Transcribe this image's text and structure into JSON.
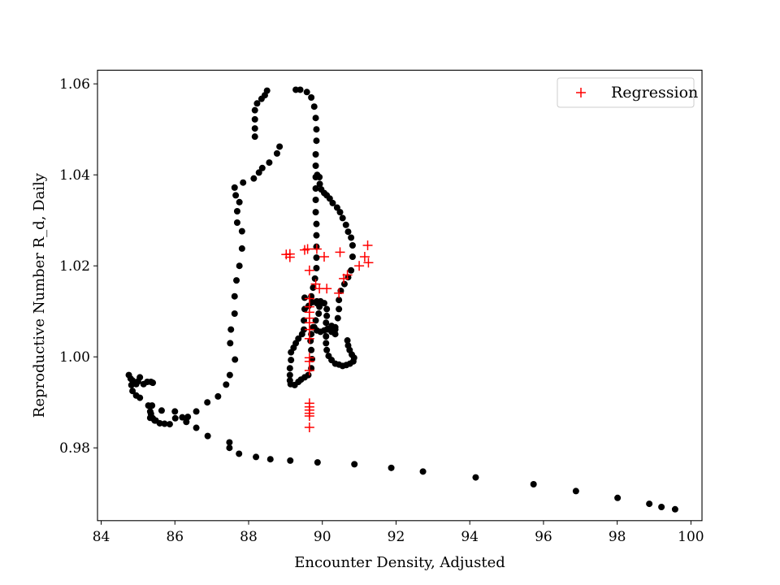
{
  "chart_data": {
    "type": "scatter",
    "title": "",
    "xlabel": "Encounter Density, Adjusted",
    "ylabel": "Reproductive Number R_d, Daily",
    "xlim": [
      83.9,
      100.3
    ],
    "ylim": [
      0.964,
      1.063
    ],
    "xticks": [
      84,
      86,
      88,
      90,
      92,
      94,
      96,
      98,
      100
    ],
    "xtick_labels": [
      "84",
      "86",
      "88",
      "90",
      "92",
      "94",
      "96",
      "98",
      "100"
    ],
    "yticks": [
      0.98,
      1.0,
      1.02,
      1.04,
      1.06
    ],
    "ytick_labels": [
      "0.98",
      "1.00",
      "1.02",
      "1.04",
      "1.06"
    ],
    "grid": false,
    "legend_position": "top-right",
    "series": [
      {
        "name": "",
        "marker": "dot",
        "color": "#000000",
        "points": [
          [
            99.57,
            0.9665
          ],
          [
            99.2,
            0.967
          ],
          [
            98.87,
            0.9677
          ],
          [
            98.01,
            0.969
          ],
          [
            96.88,
            0.9705
          ],
          [
            95.73,
            0.972
          ],
          [
            94.16,
            0.9735
          ],
          [
            92.73,
            0.9748
          ],
          [
            91.87,
            0.9756
          ],
          [
            90.87,
            0.9764
          ],
          [
            89.87,
            0.9768
          ],
          [
            89.13,
            0.9772
          ],
          [
            88.59,
            0.9775
          ],
          [
            88.2,
            0.978
          ],
          [
            87.74,
            0.9787
          ],
          [
            87.48,
            0.98
          ],
          [
            87.48,
            0.9812
          ],
          [
            86.89,
            0.9826
          ],
          [
            86.58,
            0.9844
          ],
          [
            86.31,
            0.9857
          ],
          [
            86.01,
            0.9865
          ],
          [
            85.86,
            0.9852
          ],
          [
            85.72,
            0.9853
          ],
          [
            85.59,
            0.9854
          ],
          [
            85.45,
            0.986
          ],
          [
            85.33,
            0.9866
          ],
          [
            85.33,
            0.988
          ],
          [
            85.64,
            0.9882
          ],
          [
            86.0,
            0.988
          ],
          [
            86.2,
            0.9867
          ],
          [
            86.35,
            0.9868
          ],
          [
            86.58,
            0.988
          ],
          [
            86.88,
            0.99
          ],
          [
            87.17,
            0.9913
          ],
          [
            87.39,
            0.9939
          ],
          [
            87.49,
            0.996
          ],
          [
            87.63,
            0.9994
          ],
          [
            87.5,
            1.003
          ],
          [
            87.52,
            1.006
          ],
          [
            87.62,
            1.0095
          ],
          [
            87.62,
            1.0133
          ],
          [
            87.67,
            1.0168
          ],
          [
            87.75,
            1.02
          ],
          [
            87.82,
            1.0238
          ],
          [
            87.82,
            1.0276
          ],
          [
            87.69,
            1.0295
          ],
          [
            87.69,
            1.032
          ],
          [
            87.75,
            1.034
          ],
          [
            87.65,
            1.0355
          ],
          [
            87.62,
            1.0372
          ],
          [
            87.85,
            1.0383
          ],
          [
            88.14,
            1.0392
          ],
          [
            88.28,
            1.0405
          ],
          [
            88.37,
            1.0415
          ],
          [
            88.56,
            1.0427
          ],
          [
            88.77,
            1.0447
          ],
          [
            88.84,
            1.0462
          ],
          [
            88.17,
            1.0484
          ],
          [
            88.17,
            1.0502
          ],
          [
            88.17,
            1.0522
          ],
          [
            88.17,
            1.0542
          ],
          [
            88.23,
            1.0557
          ],
          [
            88.35,
            1.0567
          ],
          [
            88.44,
            1.0575
          ],
          [
            88.5,
            1.0585
          ],
          [
            89.28,
            1.0587
          ],
          [
            89.4,
            1.0587
          ],
          [
            89.58,
            1.0582
          ],
          [
            89.7,
            1.057
          ],
          [
            89.78,
            1.055
          ],
          [
            89.82,
            1.0525
          ],
          [
            89.84,
            1.05
          ],
          [
            89.84,
            1.0475
          ],
          [
            89.82,
            1.0445
          ],
          [
            89.82,
            1.042
          ],
          [
            89.82,
            1.0395
          ],
          [
            89.82,
            1.037
          ],
          [
            89.82,
            1.0345
          ],
          [
            89.82,
            1.0318
          ],
          [
            89.84,
            1.0292
          ],
          [
            89.84,
            1.0267
          ],
          [
            89.84,
            1.0242
          ],
          [
            89.84,
            1.0218
          ],
          [
            89.84,
            1.0195
          ],
          [
            89.8,
            1.0172
          ],
          [
            89.75,
            1.0152
          ],
          [
            89.7,
            1.0133
          ],
          [
            89.86,
            1.04
          ],
          [
            89.92,
            1.0395
          ],
          [
            89.93,
            1.038
          ],
          [
            89.97,
            1.0368
          ],
          [
            90.05,
            1.036
          ],
          [
            90.12,
            1.0355
          ],
          [
            90.2,
            1.0348
          ],
          [
            90.28,
            1.0338
          ],
          [
            90.4,
            1.0328
          ],
          [
            90.48,
            1.0318
          ],
          [
            90.55,
            1.0305
          ],
          [
            90.64,
            1.029
          ],
          [
            90.7,
            1.0275
          ],
          [
            90.78,
            1.0262
          ],
          [
            90.82,
            1.0245
          ],
          [
            90.82,
            1.022
          ],
          [
            90.78,
            1.019
          ],
          [
            90.7,
            1.0175
          ],
          [
            90.6,
            1.016
          ],
          [
            90.5,
            1.0145
          ],
          [
            90.45,
            1.0125
          ],
          [
            90.45,
            1.0105
          ],
          [
            90.42,
            1.0085
          ],
          [
            90.35,
            1.0065
          ],
          [
            90.25,
            1.0055
          ],
          [
            90.68,
            1.0036
          ],
          [
            90.7,
            1.0025
          ],
          [
            90.74,
            1.0015
          ],
          [
            90.8,
            1.0005
          ],
          [
            90.86,
            0.9998
          ],
          [
            90.84,
            0.999
          ],
          [
            90.75,
            0.9985
          ],
          [
            90.65,
            0.9982
          ],
          [
            90.55,
            0.998
          ],
          [
            90.45,
            0.9983
          ],
          [
            90.35,
            0.9985
          ],
          [
            90.25,
            0.9993
          ],
          [
            90.17,
            1.0002
          ],
          [
            90.12,
            1.0015
          ],
          [
            90.1,
            1.003
          ],
          [
            90.1,
            1.0045
          ],
          [
            90.12,
            1.006
          ],
          [
            90.1,
            1.0075
          ],
          [
            90.12,
            1.009
          ],
          [
            90.12,
            1.0105
          ],
          [
            90.05,
            1.0118
          ],
          [
            89.95,
            1.0122
          ],
          [
            89.85,
            1.0122
          ],
          [
            89.72,
            1.012
          ],
          [
            89.63,
            1.0112
          ],
          [
            89.52,
            1.013
          ],
          [
            89.52,
            1.0105
          ],
          [
            89.5,
            1.008
          ],
          [
            89.5,
            1.006
          ],
          [
            89.45,
            1.005
          ],
          [
            89.35,
            1.004
          ],
          [
            89.28,
            1.003
          ],
          [
            89.22,
            1.002
          ],
          [
            89.15,
            1.001
          ],
          [
            89.15,
            0.9993
          ],
          [
            89.12,
            0.9975
          ],
          [
            89.12,
            0.996
          ],
          [
            89.12,
            0.9948
          ],
          [
            89.14,
            0.994
          ],
          [
            89.25,
            0.9938
          ],
          [
            89.35,
            0.9945
          ],
          [
            89.42,
            0.995
          ],
          [
            89.52,
            0.9955
          ],
          [
            89.62,
            0.996
          ],
          [
            89.7,
            0.9975
          ],
          [
            89.72,
            0.9995
          ],
          [
            89.7,
            1.0015
          ],
          [
            89.68,
            1.0035
          ],
          [
            89.7,
            1.005
          ],
          [
            89.75,
            1.0065
          ],
          [
            89.82,
            1.008
          ],
          [
            89.9,
            1.0095
          ],
          [
            89.92,
            1.011
          ],
          [
            89.85,
            1.0118
          ],
          [
            89.78,
            1.0065
          ],
          [
            89.85,
            1.0058
          ],
          [
            89.95,
            1.0055
          ],
          [
            90.05,
            1.0058
          ],
          [
            90.15,
            1.0062
          ],
          [
            90.25,
            1.0068
          ],
          [
            90.35,
            1.006
          ],
          [
            90.35,
            1.005
          ],
          [
            85.05,
            0.9955
          ],
          [
            85.0,
            0.9946
          ],
          [
            84.95,
            0.994
          ],
          [
            84.85,
            0.9948
          ],
          [
            84.75,
            0.996
          ],
          [
            84.8,
            0.9952
          ],
          [
            84.82,
            0.9938
          ],
          [
            84.85,
            0.9925
          ],
          [
            84.95,
            0.9915
          ],
          [
            85.05,
            0.991
          ],
          [
            85.15,
            0.994
          ],
          [
            85.25,
            0.9945
          ],
          [
            85.35,
            0.9945
          ],
          [
            85.4,
            0.9943
          ],
          [
            85.38,
            0.9893
          ],
          [
            85.28,
            0.9893
          ],
          [
            85.35,
            0.9875
          ],
          [
            85.4,
            0.9865
          ],
          [
            85.48,
            0.986
          ]
        ]
      },
      {
        "name": "Regression",
        "marker": "plus",
        "color": "#ff0000",
        "points": [
          [
            89.02,
            1.0225
          ],
          [
            89.12,
            1.0226
          ],
          [
            89.12,
            1.0219
          ],
          [
            89.52,
            1.0235
          ],
          [
            89.6,
            1.0237
          ],
          [
            89.85,
            1.0237
          ],
          [
            90.05,
            1.022
          ],
          [
            90.48,
            1.023
          ],
          [
            91.23,
            1.0245
          ],
          [
            91.15,
            1.022
          ],
          [
            91.25,
            1.0207
          ],
          [
            91.0,
            1.02
          ],
          [
            90.68,
            1.018
          ],
          [
            90.58,
            1.0172
          ],
          [
            90.45,
            1.014
          ],
          [
            90.12,
            1.015
          ],
          [
            89.92,
            1.015
          ],
          [
            89.82,
            1.016
          ],
          [
            89.65,
            1.019
          ],
          [
            89.65,
            1.0128
          ],
          [
            89.65,
            1.011
          ],
          [
            89.65,
            1.0098
          ],
          [
            89.65,
            1.0085
          ],
          [
            89.65,
            1.0075
          ],
          [
            89.65,
            1.006
          ],
          [
            89.65,
            1.004
          ],
          [
            89.65,
            0.9998
          ],
          [
            89.65,
            0.999
          ],
          [
            89.65,
            0.997
          ],
          [
            89.65,
            0.9898
          ],
          [
            89.65,
            0.989
          ],
          [
            89.65,
            0.9883
          ],
          [
            89.65,
            0.9876
          ],
          [
            89.65,
            0.987
          ],
          [
            89.65,
            0.9845
          ]
        ]
      }
    ]
  }
}
